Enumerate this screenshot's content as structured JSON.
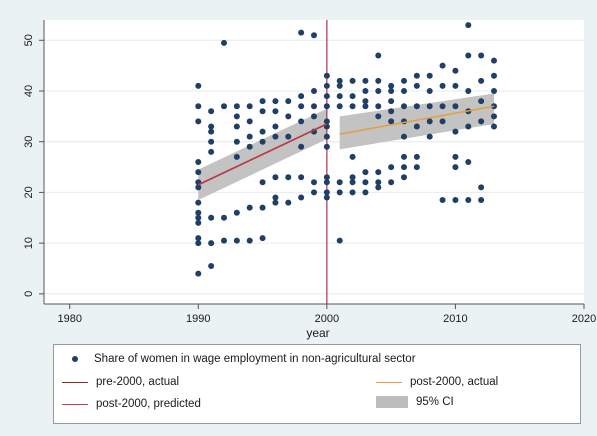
{
  "chart_data": {
    "type": "scatter",
    "title": "",
    "xlabel": "year",
    "ylabel": "",
    "xlim": [
      1978,
      2020
    ],
    "ylim": [
      -2,
      54
    ],
    "xticks": [
      1980,
      1990,
      2000,
      2010,
      2020
    ],
    "yticks": [
      0,
      10,
      20,
      30,
      40,
      50
    ],
    "grid": "horizontal",
    "vline": {
      "x": 2000,
      "color": "#b03050"
    },
    "colors": {
      "points": "#1f3f66",
      "pre_line": "#c0384a",
      "post_line": "#e0a040",
      "ci": "#bdbdbd",
      "vline": "#b03050"
    },
    "scatter_series": {
      "name": "Share of women in wage employment in non-agricultural sector",
      "points": [
        [
          1990,
          41
        ],
        [
          1990,
          37
        ],
        [
          1990,
          34
        ],
        [
          1990,
          26
        ],
        [
          1990,
          24
        ],
        [
          1990,
          22
        ],
        [
          1990,
          21
        ],
        [
          1990,
          18
        ],
        [
          1990,
          16
        ],
        [
          1990,
          15
        ],
        [
          1990,
          14
        ],
        [
          1990,
          11
        ],
        [
          1990,
          10
        ],
        [
          1990,
          4
        ],
        [
          1991,
          36
        ],
        [
          1991,
          33
        ],
        [
          1991,
          32
        ],
        [
          1991,
          30
        ],
        [
          1991,
          28
        ],
        [
          1991,
          15
        ],
        [
          1991,
          10
        ],
        [
          1991,
          5.5
        ],
        [
          1992,
          49.5
        ],
        [
          1992,
          37
        ],
        [
          1992,
          15
        ],
        [
          1992,
          10.5
        ],
        [
          1993,
          37
        ],
        [
          1993,
          35
        ],
        [
          1993,
          33
        ],
        [
          1993,
          30
        ],
        [
          1993,
          27
        ],
        [
          1993,
          16
        ],
        [
          1993,
          10.5
        ],
        [
          1994,
          37
        ],
        [
          1994,
          34
        ],
        [
          1994,
          31
        ],
        [
          1994,
          29
        ],
        [
          1994,
          17
        ],
        [
          1994,
          10.5
        ],
        [
          1995,
          38
        ],
        [
          1995,
          36
        ],
        [
          1995,
          32
        ],
        [
          1995,
          30
        ],
        [
          1995,
          22
        ],
        [
          1995,
          17
        ],
        [
          1995,
          11
        ],
        [
          1996,
          38
        ],
        [
          1996,
          36
        ],
        [
          1996,
          33
        ],
        [
          1996,
          31
        ],
        [
          1996,
          23
        ],
        [
          1996,
          19
        ],
        [
          1996,
          18
        ],
        [
          1997,
          38
        ],
        [
          1997,
          35
        ],
        [
          1997,
          31
        ],
        [
          1997,
          23
        ],
        [
          1997,
          18
        ],
        [
          1998,
          51.5
        ],
        [
          1998,
          39
        ],
        [
          1998,
          37
        ],
        [
          1998,
          34
        ],
        [
          1998,
          29
        ],
        [
          1998,
          23
        ],
        [
          1998,
          19
        ],
        [
          1999,
          51
        ],
        [
          1999,
          40
        ],
        [
          1999,
          37
        ],
        [
          1999,
          35
        ],
        [
          1999,
          32
        ],
        [
          1999,
          22
        ],
        [
          1999,
          20
        ],
        [
          2000,
          43
        ],
        [
          2000,
          41
        ],
        [
          2000,
          39
        ],
        [
          2000,
          37
        ],
        [
          2000,
          34
        ],
        [
          2000,
          33
        ],
        [
          2000,
          31
        ],
        [
          2000,
          29
        ],
        [
          2000,
          23
        ],
        [
          2000,
          22
        ],
        [
          2000,
          20
        ],
        [
          2000,
          19
        ],
        [
          2001,
          42
        ],
        [
          2001,
          41
        ],
        [
          2001,
          39
        ],
        [
          2001,
          37
        ],
        [
          2001,
          22
        ],
        [
          2001,
          20
        ],
        [
          2001,
          10.5
        ],
        [
          2002,
          42
        ],
        [
          2002,
          39
        ],
        [
          2002,
          37
        ],
        [
          2002,
          27
        ],
        [
          2002,
          23
        ],
        [
          2002,
          22
        ],
        [
          2002,
          20
        ],
        [
          2003,
          42
        ],
        [
          2003,
          40
        ],
        [
          2003,
          38
        ],
        [
          2003,
          37
        ],
        [
          2003,
          24
        ],
        [
          2003,
          22
        ],
        [
          2003,
          20
        ],
        [
          2004,
          47
        ],
        [
          2004,
          42
        ],
        [
          2004,
          40
        ],
        [
          2004,
          37
        ],
        [
          2004,
          35
        ],
        [
          2004,
          24
        ],
        [
          2004,
          22
        ],
        [
          2004,
          21
        ],
        [
          2005,
          41
        ],
        [
          2005,
          40
        ],
        [
          2005,
          38
        ],
        [
          2005,
          36
        ],
        [
          2005,
          34
        ],
        [
          2005,
          25
        ],
        [
          2005,
          22
        ],
        [
          2006,
          42
        ],
        [
          2006,
          40
        ],
        [
          2006,
          37
        ],
        [
          2006,
          34
        ],
        [
          2006,
          31
        ],
        [
          2006,
          27
        ],
        [
          2006,
          25
        ],
        [
          2006,
          23
        ],
        [
          2007,
          43
        ],
        [
          2007,
          41
        ],
        [
          2007,
          37
        ],
        [
          2007,
          33
        ],
        [
          2007,
          27
        ],
        [
          2007,
          25
        ],
        [
          2008,
          43
        ],
        [
          2008,
          40
        ],
        [
          2008,
          37
        ],
        [
          2008,
          34
        ],
        [
          2008,
          31
        ],
        [
          2009,
          45
        ],
        [
          2009,
          41
        ],
        [
          2009,
          37
        ],
        [
          2009,
          34
        ],
        [
          2009,
          18.5
        ],
        [
          2010,
          44
        ],
        [
          2010,
          41
        ],
        [
          2010,
          37
        ],
        [
          2010,
          32
        ],
        [
          2010,
          27
        ],
        [
          2010,
          25
        ],
        [
          2010,
          18.5
        ],
        [
          2011,
          53
        ],
        [
          2011,
          47
        ],
        [
          2011,
          40
        ],
        [
          2011,
          36
        ],
        [
          2011,
          33
        ],
        [
          2011,
          26
        ],
        [
          2011,
          18.5
        ],
        [
          2012,
          47
        ],
        [
          2012,
          42
        ],
        [
          2012,
          38
        ],
        [
          2012,
          34
        ],
        [
          2012,
          21
        ],
        [
          2012,
          18.5
        ],
        [
          2013,
          46
        ],
        [
          2013,
          43
        ],
        [
          2013,
          40
        ],
        [
          2013,
          37
        ],
        [
          2013,
          35
        ],
        [
          2013,
          33
        ]
      ]
    },
    "lines": [
      {
        "name": "pre-2000, actual",
        "x": [
          1990,
          2000
        ],
        "y": [
          21.5,
          33.5
        ],
        "color": "#8b2a2a"
      },
      {
        "name": "post-2000, actual",
        "x": [
          2001,
          2013
        ],
        "y": [
          31.5,
          37
        ],
        "color": "#e0a040"
      },
      {
        "name": "post-2000, predicted",
        "x": [
          1990,
          2000
        ],
        "y": [
          21.5,
          33.5
        ],
        "color": "#c0384a"
      }
    ],
    "ci_bands": [
      {
        "x": [
          1990,
          2000
        ],
        "lower": [
          18.5,
          30.5
        ],
        "upper": [
          24.5,
          36.5
        ]
      },
      {
        "x": [
          2001,
          2013
        ],
        "lower": [
          28.5,
          33.5
        ],
        "upper": [
          35,
          39.5
        ]
      }
    ],
    "legend": {
      "position": "bottom",
      "items": [
        {
          "key": "dot",
          "label": "Share of women in wage employment in non-agricultural sector"
        },
        {
          "key": "line",
          "label": "pre-2000, actual",
          "color": "#8b2a2a"
        },
        {
          "key": "line",
          "label": "post-2000, actual",
          "color": "#e0a040"
        },
        {
          "key": "line",
          "label": "post-2000, predicted",
          "color": "#c0384a"
        },
        {
          "key": "area",
          "label": "95% CI",
          "color": "#bdbdbd"
        }
      ]
    }
  }
}
